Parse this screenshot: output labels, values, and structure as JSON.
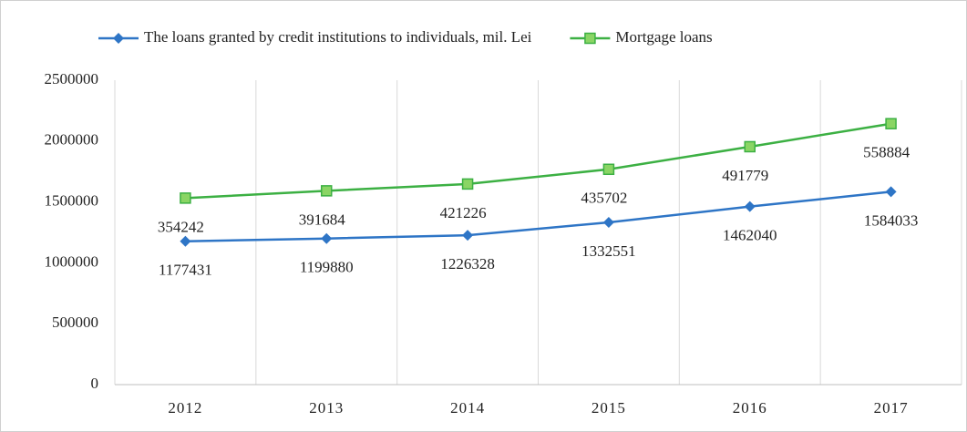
{
  "chart_data": {
    "type": "line",
    "stacked": true,
    "categories": [
      "2012",
      "2013",
      "2014",
      "2015",
      "2016",
      "2017"
    ],
    "series": [
      {
        "name": "The loans granted by credit institutions to individuals, mil. Lei",
        "color": "#2e75c6",
        "marker": "diamond",
        "values": [
          1177431,
          1199880,
          1226328,
          1332551,
          1462040,
          1584033
        ]
      },
      {
        "name": "Mortgage loans",
        "color": "#3cb043",
        "marker": "square",
        "values": [
          354242,
          391684,
          421226,
          435702,
          491779,
          558884
        ]
      }
    ],
    "ylim": [
      0,
      2500000
    ],
    "yticks": [
      0,
      500000,
      1000000,
      1500000,
      2000000,
      2500000
    ],
    "grid": "vertical",
    "legend": "top"
  }
}
